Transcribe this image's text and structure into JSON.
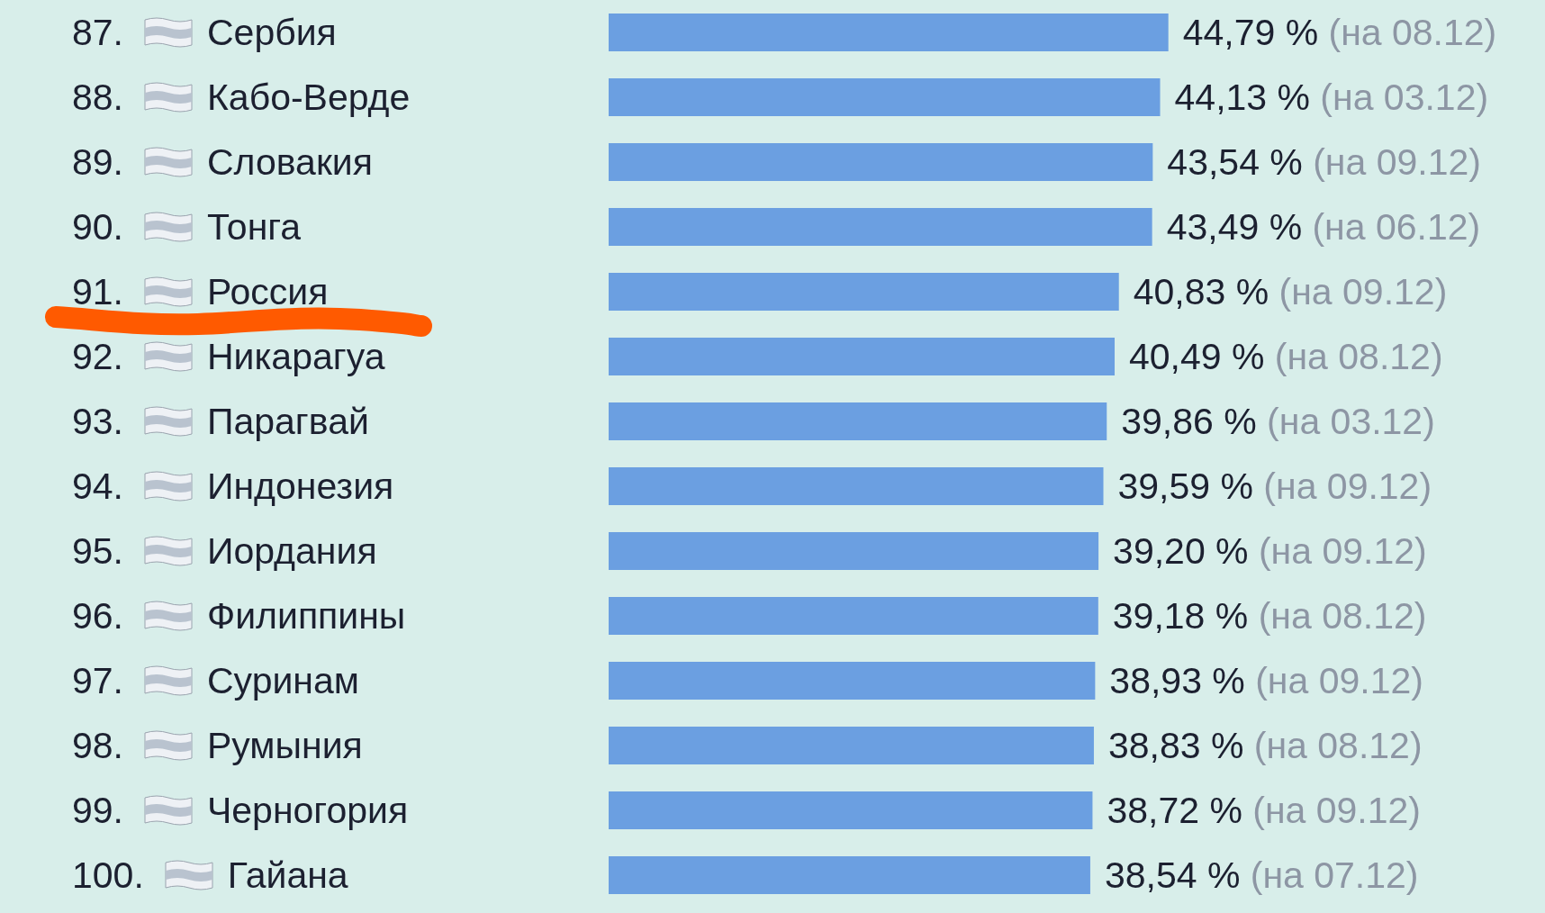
{
  "chart_data": {
    "type": "bar",
    "orientation": "horizontal",
    "categories": [
      "87. Сербия",
      "88. Кабо-Верде",
      "89. Словакия",
      "90. Тонга",
      "91. Россия",
      "92. Никарагуа",
      "93. Парагвай",
      "94. Индонезия",
      "95. Иордания",
      "96. Филиппины",
      "97. Суринам",
      "98. Румыния",
      "99. Черногория",
      "100. Гайана"
    ],
    "values": [
      44.79,
      44.13,
      43.54,
      43.49,
      40.83,
      40.49,
      39.86,
      39.59,
      39.2,
      39.18,
      38.93,
      38.83,
      38.72,
      38.54
    ],
    "color": "#6b9fe1",
    "value_labels": [
      "44,79 % (на 08.12)",
      "44,13 % (на 03.12)",
      "43,54 % (на 09.12)",
      "43,49 % (на 06.12)",
      "40,83 % (на 09.12)",
      "40,49 % (на 08.12)",
      "39,86 % (на 03.12)",
      "39,59 % (на 09.12)",
      "39,20 % (на 09.12)",
      "39,18 % (на 08.12)",
      "38,93 % (на 09.12)",
      "38,83 % (на 08.12)",
      "38,72 % (на 09.12)",
      "38,54 % (на 07.12)"
    ]
  }
}
